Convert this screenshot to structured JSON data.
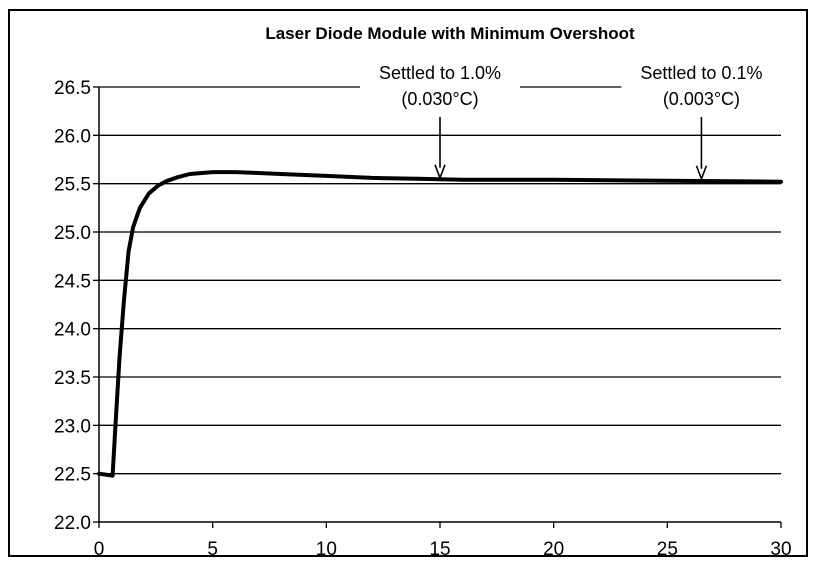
{
  "chart_data": {
    "type": "line",
    "title": "Laser Diode Module with Minimum Overshoot",
    "xlabel": "",
    "ylabel": "",
    "xlim": [
      0,
      30
    ],
    "ylim": [
      22.0,
      26.5
    ],
    "x_ticks": [
      0,
      5,
      10,
      15,
      20,
      25,
      30
    ],
    "x_tick_labels": [
      "0",
      "5",
      "10",
      "15",
      "20",
      "25",
      "30"
    ],
    "y_ticks": [
      22.0,
      22.5,
      23.0,
      23.5,
      24.0,
      24.5,
      25.0,
      25.5,
      26.0,
      26.5
    ],
    "y_tick_labels": [
      "22.0",
      "22.5",
      "23.0",
      "23.5",
      "24.0",
      "24.5",
      "25.0",
      "25.5",
      "26.0",
      "26.5"
    ],
    "grid": "horizontal",
    "legend": "none",
    "series": [
      {
        "color": "#000000",
        "x": [
          0,
          0.6,
          0.7,
          0.9,
          1.1,
          1.3,
          1.5,
          1.8,
          2.2,
          2.6,
          3.0,
          3.5,
          4.0,
          5.0,
          6.0,
          7.0,
          8.0,
          10.0,
          12.0,
          14.0,
          16.0,
          20.0,
          25.0,
          30.0
        ],
        "values": [
          22.5,
          22.48,
          22.9,
          23.7,
          24.3,
          24.8,
          25.05,
          25.25,
          25.4,
          25.48,
          25.53,
          25.57,
          25.6,
          25.62,
          25.62,
          25.61,
          25.6,
          25.58,
          25.56,
          25.55,
          25.54,
          25.54,
          25.53,
          25.52
        ]
      }
    ],
    "annotations": [
      {
        "line1": "Settled to 1.0%",
        "line2": "(0.030°C)",
        "x": 15.0,
        "y": 25.54
      },
      {
        "line1": "Settled to 0.1%",
        "line2": "(0.003°C)",
        "x": 26.5,
        "y": 25.53
      }
    ]
  }
}
